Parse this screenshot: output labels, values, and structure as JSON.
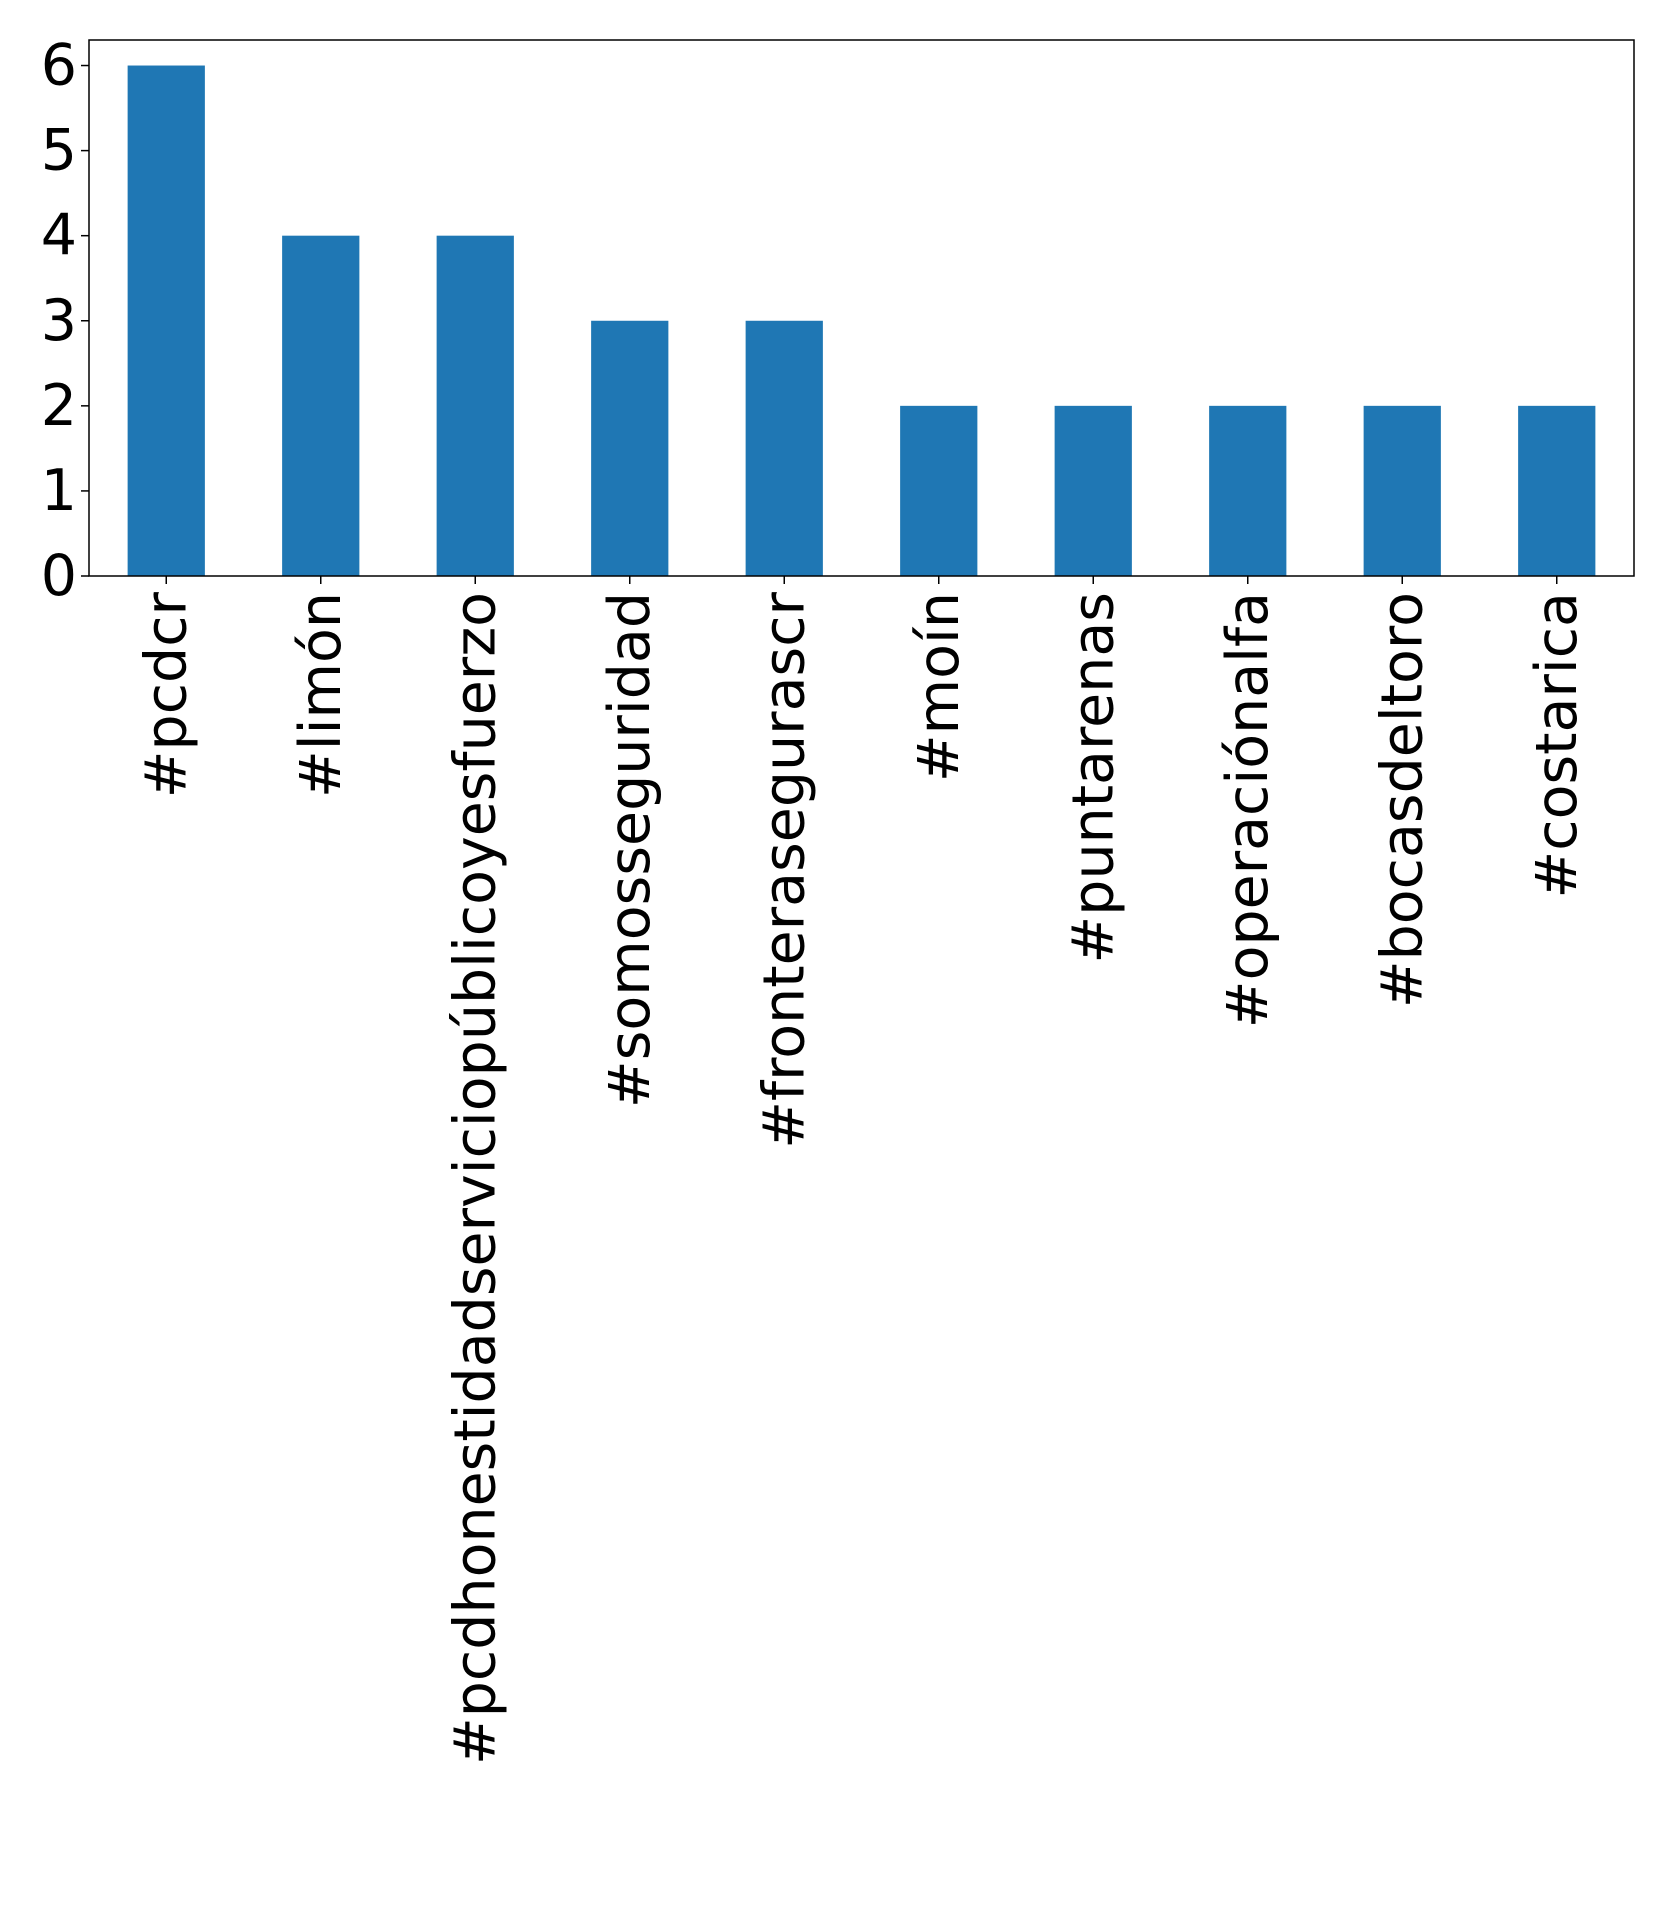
{
  "chart_data": {
    "type": "bar",
    "categories": [
      "#pcdcr",
      "#limón",
      "#pcdhonestidadserviciopúblicoyesfuerzo",
      "#somosseguridad",
      "#fronterasegurascr",
      "#moín",
      "#puntarenas",
      "#operaciónalfa",
      "#bocasdeltoro",
      "#costarica"
    ],
    "values": [
      6,
      4,
      4,
      3,
      3,
      2,
      2,
      2,
      2,
      2
    ],
    "color": "#1f77b4",
    "ylim": [
      0,
      6.3
    ],
    "yticks": [
      0,
      1,
      2,
      3,
      4,
      5,
      6
    ],
    "grid": false
  }
}
